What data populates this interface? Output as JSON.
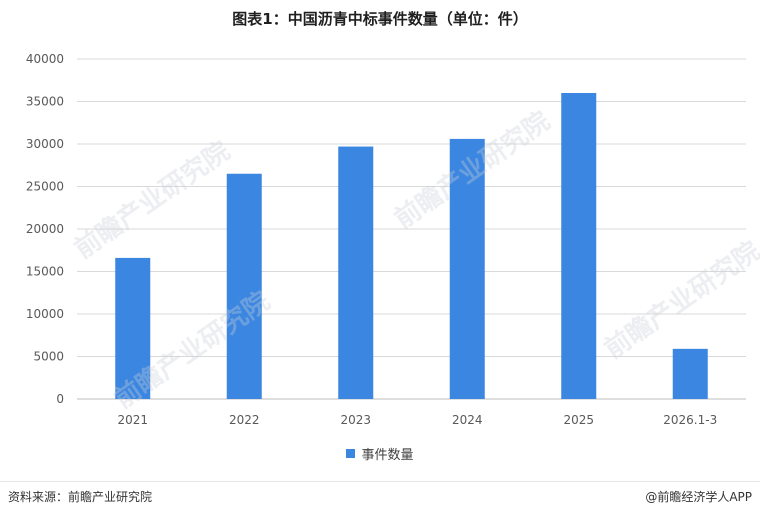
{
  "title": "图表1：中国沥青中标事件数量（单位：件）",
  "chart_data": {
    "type": "bar",
    "categories": [
      "2021",
      "2022",
      "2023",
      "2024",
      "2025",
      "2026.1-3"
    ],
    "series": [
      {
        "name": "事件数量",
        "values": [
          16600,
          26500,
          29700,
          30600,
          36000,
          5900
        ]
      }
    ],
    "ylim": [
      0,
      40000
    ],
    "yticks": [
      0,
      5000,
      10000,
      15000,
      20000,
      25000,
      30000,
      35000,
      40000
    ],
    "grid": true,
    "legend": "bottom",
    "color": "#3b86e0"
  },
  "footer": {
    "source": "资料来源：前瞻产业研究院",
    "credit": "@前瞻经济学人APP"
  },
  "watermark": "前瞻产业研究院"
}
